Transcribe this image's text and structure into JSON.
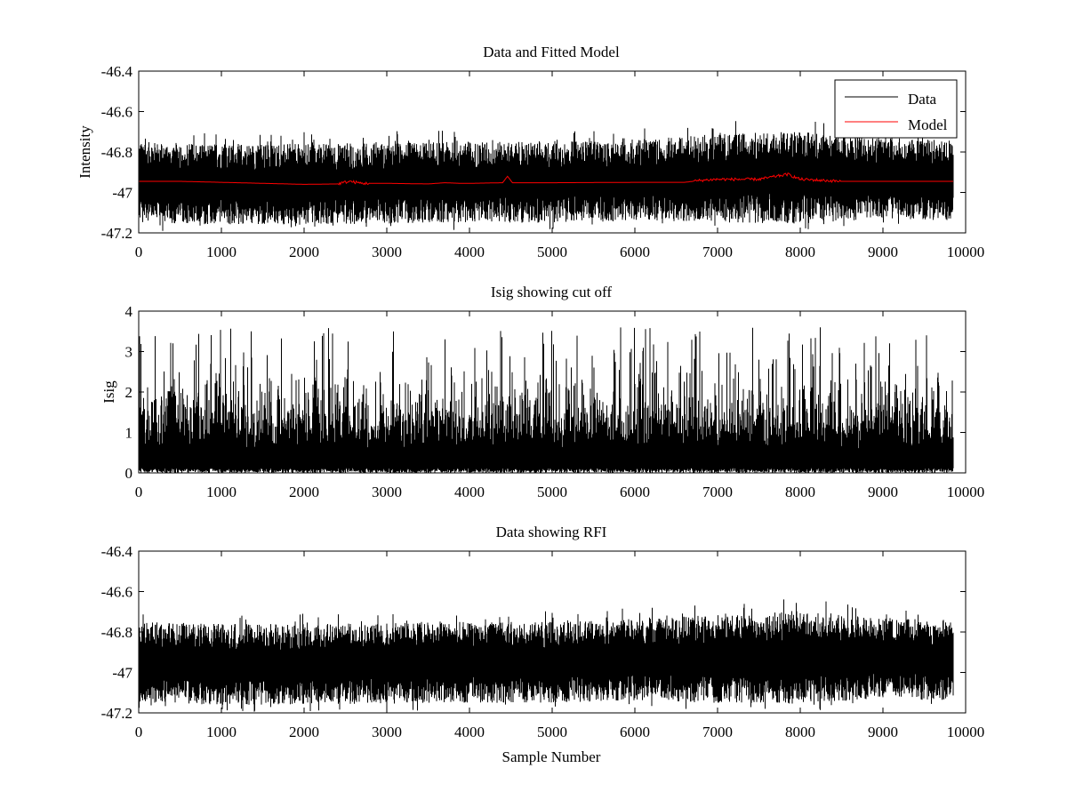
{
  "chart_data": [
    {
      "type": "line",
      "title": "Data and Fitted Model",
      "xlabel": "",
      "ylabel": "Intensity",
      "xlim": [
        0,
        10000
      ],
      "ylim": [
        -47.2,
        -46.4
      ],
      "xticks": [
        0,
        1000,
        2000,
        3000,
        4000,
        5000,
        6000,
        7000,
        8000,
        9000,
        10000
      ],
      "yticks": [
        -47.2,
        -47,
        -46.8,
        -46.6,
        -46.4
      ],
      "xtick_labels": [
        "0",
        "1000",
        "2000",
        "3000",
        "4000",
        "5000",
        "6000",
        "7000",
        "8000",
        "9000",
        "10000"
      ],
      "ytick_labels": [
        "-47.2",
        "-47",
        "-46.8",
        "-46.6",
        "-46.4"
      ],
      "grid": false,
      "legend": {
        "placement": "top-right",
        "entries": [
          "Data",
          "Model"
        ]
      },
      "series": [
        {
          "name": "Data",
          "color": "#000000",
          "noisy": true,
          "x": [
            0,
            1000,
            2000,
            3000,
            4000,
            5000,
            6000,
            7000,
            8000,
            9000,
            9850
          ],
          "center": [
            -46.95,
            -46.96,
            -46.96,
            -46.955,
            -46.95,
            -46.95,
            -46.94,
            -46.93,
            -46.925,
            -46.93,
            -46.94
          ],
          "halfrange": [
            0.2,
            0.2,
            0.2,
            0.2,
            0.2,
            0.2,
            0.2,
            0.22,
            0.23,
            0.2,
            0.2
          ]
        },
        {
          "name": "Model",
          "color": "#ff0000",
          "noisy": false,
          "x": [
            0,
            500,
            1000,
            1500,
            2000,
            2400,
            2550,
            2700,
            3000,
            3500,
            3700,
            3900,
            4000,
            4400,
            4460,
            4520,
            5000,
            6000,
            6600,
            6800,
            7000,
            7500,
            7850,
            8000,
            8500,
            9000,
            9850
          ],
          "y": [
            -46.945,
            -46.945,
            -46.95,
            -46.955,
            -46.96,
            -46.958,
            -46.945,
            -46.955,
            -46.955,
            -46.958,
            -46.952,
            -46.955,
            -46.955,
            -46.952,
            -46.92,
            -46.952,
            -46.952,
            -46.95,
            -46.95,
            -46.94,
            -46.935,
            -46.935,
            -46.91,
            -46.935,
            -46.945,
            -46.945,
            -46.945
          ]
        }
      ]
    },
    {
      "type": "line",
      "title": "Isig showing cut off",
      "xlabel": "",
      "ylabel": "Isig",
      "xlim": [
        0,
        10000
      ],
      "ylim": [
        0,
        4
      ],
      "xticks": [
        0,
        1000,
        2000,
        3000,
        4000,
        5000,
        6000,
        7000,
        8000,
        9000,
        10000
      ],
      "yticks": [
        0,
        1,
        2,
        3,
        4
      ],
      "xtick_labels": [
        "0",
        "1000",
        "2000",
        "3000",
        "4000",
        "5000",
        "6000",
        "7000",
        "8000",
        "9000",
        "10000"
      ],
      "ytick_labels": [
        "0",
        "1",
        "2",
        "3",
        "4"
      ],
      "grid": false,
      "series": [
        {
          "color": "#000000",
          "noisy": true,
          "kind": "positive",
          "x": [
            0,
            9850
          ],
          "min": 0,
          "typical_max": 1.8,
          "peak_max": 3.6
        }
      ]
    },
    {
      "type": "line",
      "title": "Data showing RFI",
      "xlabel": "Sample Number",
      "ylabel": "",
      "xlim": [
        0,
        10000
      ],
      "ylim": [
        -47.2,
        -46.4
      ],
      "xticks": [
        0,
        1000,
        2000,
        3000,
        4000,
        5000,
        6000,
        7000,
        8000,
        9000,
        10000
      ],
      "yticks": [
        -47.2,
        -47,
        -46.8,
        -46.6,
        -46.4
      ],
      "xtick_labels": [
        "0",
        "1000",
        "2000",
        "3000",
        "4000",
        "5000",
        "6000",
        "7000",
        "8000",
        "9000",
        "10000"
      ],
      "ytick_labels": [
        "-47.2",
        "-47",
        "-46.8",
        "-46.6",
        "-46.4"
      ],
      "grid": false,
      "series": [
        {
          "color": "#000000",
          "noisy": true,
          "x": [
            0,
            1000,
            2000,
            3000,
            4000,
            5000,
            6000,
            7000,
            8000,
            9000,
            9850
          ],
          "center": [
            -46.95,
            -46.96,
            -46.96,
            -46.955,
            -46.95,
            -46.95,
            -46.94,
            -46.93,
            -46.925,
            -46.93,
            -46.94
          ],
          "halfrange": [
            0.2,
            0.2,
            0.2,
            0.2,
            0.2,
            0.2,
            0.2,
            0.22,
            0.23,
            0.2,
            0.2
          ]
        }
      ]
    }
  ]
}
